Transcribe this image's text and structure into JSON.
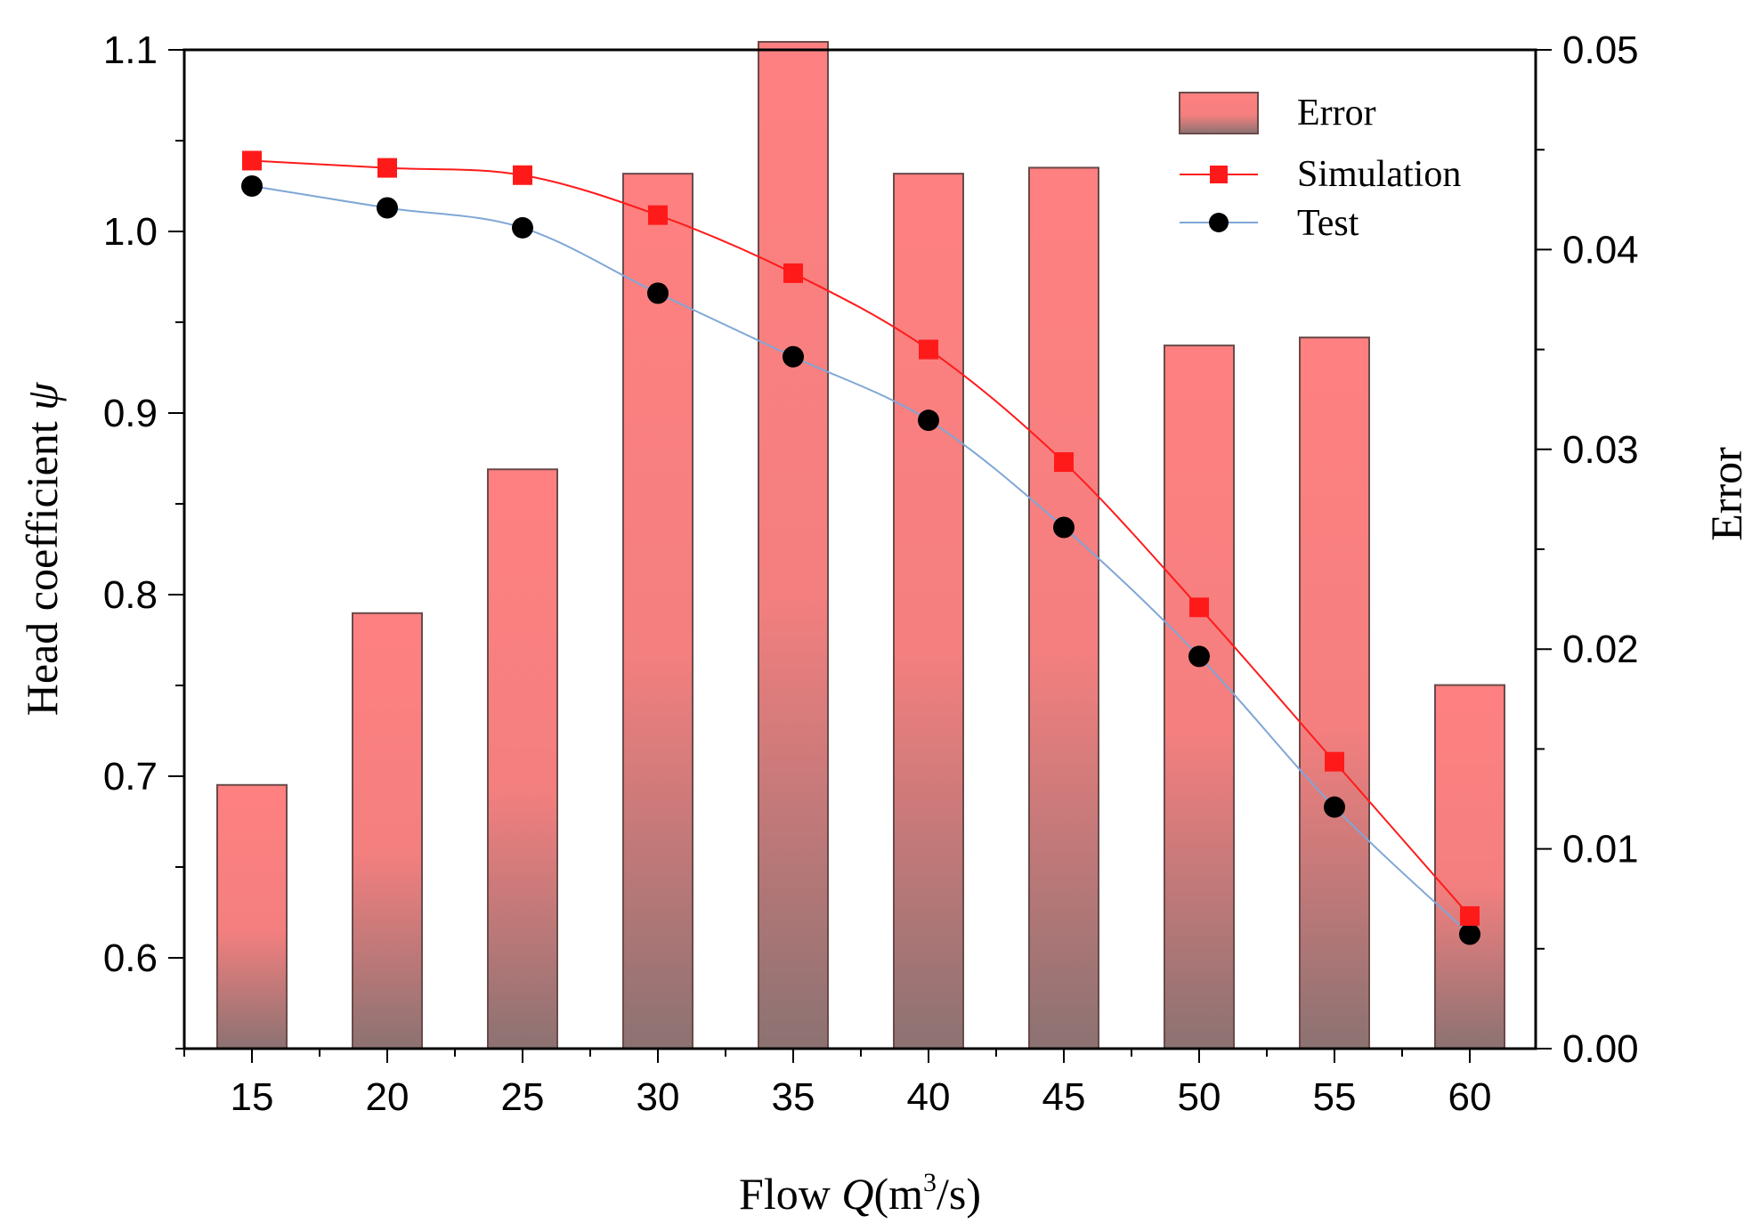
{
  "chart_data": {
    "type": "bar+line",
    "categories": [
      "15",
      "20",
      "25",
      "30",
      "35",
      "40",
      "45",
      "50",
      "55",
      "60"
    ],
    "x": [
      15,
      20,
      25,
      30,
      35,
      40,
      45,
      50,
      55,
      60
    ],
    "bars": {
      "name": "Error",
      "axis": "right",
      "values": [
        0.0132,
        0.0218,
        0.029,
        0.0438,
        0.0504,
        0.0438,
        0.0441,
        0.0352,
        0.0356,
        0.0182
      ]
    },
    "series": [
      {
        "name": "Simulation",
        "axis": "left",
        "marker": "square",
        "color": "#ff1a1a",
        "values": [
          1.039,
          1.035,
          1.031,
          1.009,
          0.977,
          0.935,
          0.873,
          0.793,
          0.708,
          0.623
        ]
      },
      {
        "name": "Test",
        "axis": "left",
        "marker": "circle",
        "color": "#7fa6d6",
        "marker_color": "#000000",
        "values": [
          1.025,
          1.013,
          1.002,
          0.966,
          0.931,
          0.896,
          0.837,
          0.766,
          0.683,
          0.613
        ]
      }
    ],
    "xlabel": {
      "prefix": "Flow ",
      "italic": "Q",
      "unit_open": "(m",
      "sup": "3",
      "unit_close": "/s)"
    },
    "ylabel": {
      "text": "Head coefficient ",
      "italic": "ψ"
    },
    "y2label": "Error",
    "ylim": [
      0.55,
      1.1
    ],
    "y2lim": [
      0.0,
      0.05
    ],
    "yticks": [
      "0.6",
      "0.7",
      "0.8",
      "0.9",
      "1.0",
      "1.1"
    ],
    "y2ticks": [
      "0.00",
      "0.01",
      "0.02",
      "0.03",
      "0.04",
      "0.05"
    ],
    "legend": {
      "position": "top-right",
      "entries": [
        "Error",
        "Simulation",
        "Test"
      ]
    },
    "colors": {
      "bar_top": "#ff8080",
      "bar_bottom": "#8c7272",
      "sim": "#ff1a1a",
      "test_line": "#7fa6d6",
      "test_marker": "#000000"
    }
  }
}
